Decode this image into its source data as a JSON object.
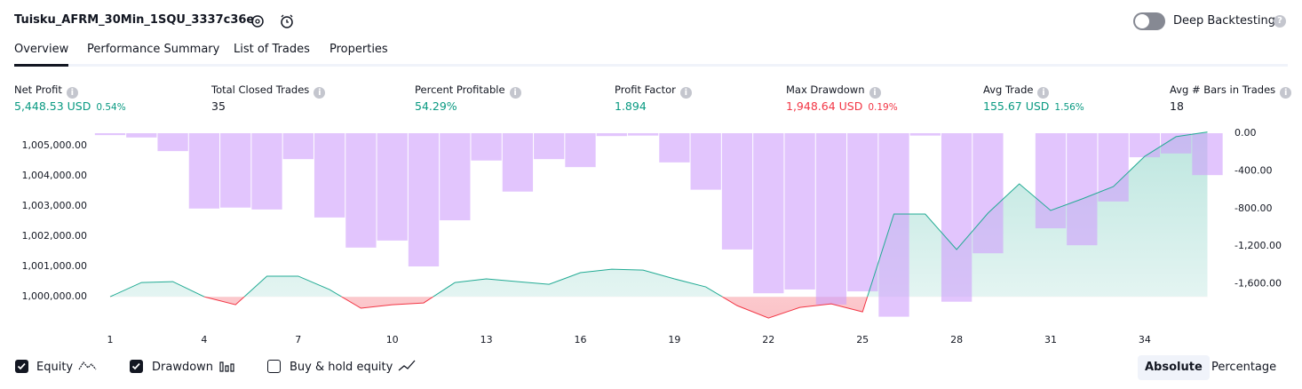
{
  "header": {
    "title": "Tuisku_AFRM_30Min_1SQU_3337c36e",
    "toggle": "Deep Backtesting",
    "toggle_on": false
  },
  "tabs": {
    "items": [
      "Overview",
      "Performance Summary",
      "List of Trades",
      "Properties"
    ],
    "active": 0
  },
  "metrics": [
    {
      "label": "Net Profit",
      "value": "5,448.53 USD",
      "pct": "0.54%",
      "color": "#089981"
    },
    {
      "label": "Total Closed Trades",
      "value": "35",
      "color": "#131722"
    },
    {
      "label": "Percent Profitable",
      "value": "54.29%",
      "color": "#089981"
    },
    {
      "label": "Profit Factor",
      "value": "1.894",
      "color": "#089981"
    },
    {
      "label": "Max Drawdown",
      "value": "1,948.64 USD",
      "pct": "0.19%",
      "color": "#f23645"
    },
    {
      "label": "Avg Trade",
      "value": "155.67 USD",
      "pct": "1.56%",
      "color": "#089981"
    },
    {
      "label": "Avg # Bars in Trades",
      "value": "18",
      "color": "#131722"
    }
  ],
  "chart_data": {
    "type": "equity-drawdown",
    "x": [
      1,
      2,
      3,
      4,
      5,
      6,
      7,
      8,
      9,
      10,
      11,
      12,
      13,
      14,
      15,
      16,
      17,
      18,
      19,
      20,
      21,
      22,
      23,
      24,
      25,
      26,
      27,
      28,
      29,
      30,
      31,
      32,
      33,
      34,
      35,
      36
    ],
    "xlim": [
      1,
      36
    ],
    "xticks": [
      1,
      4,
      7,
      10,
      13,
      16,
      19,
      22,
      25,
      28,
      31,
      34
    ],
    "series": [
      {
        "name": "Equity",
        "color": "#22ab94",
        "negative_color": "#f23645",
        "checked": true,
        "axis": "y",
        "values": [
          1000000,
          1000470,
          1000500,
          1000000,
          999735,
          1000680,
          1000680,
          1000235,
          999620,
          999735,
          999795,
          1000470,
          1000590,
          1000500,
          1000410,
          1000795,
          1000910,
          1000880,
          1000590,
          1000325,
          999705,
          999295,
          999645,
          999765,
          999500,
          1002735,
          1002735,
          1001560,
          1002765,
          1003735,
          1002855,
          1003235,
          1003645,
          1004645,
          1005295,
          1005449
        ]
      },
      {
        "name": "Drawdown",
        "color": "#ce9ffc",
        "checked": true,
        "axis": "y2",
        "values": [
          -20,
          -45,
          -190,
          -800,
          -790,
          -810,
          -275,
          -895,
          -1215,
          -1140,
          -1415,
          -925,
          -290,
          -620,
          -275,
          -360,
          -30,
          -25,
          -310,
          -600,
          -1235,
          -1700,
          -1660,
          -1820,
          -1680,
          -1949,
          -25,
          -1790,
          -1275,
          0,
          -1010,
          -1190,
          -725,
          -255,
          -215,
          -445
        ]
      }
    ],
    "extra_legend": {
      "name": "Buy & hold equity",
      "checked": false
    },
    "ylim": [
      999180,
      1005410
    ],
    "yticks": [
      {
        "value": 1005000,
        "label": "1,005,000.00"
      },
      {
        "value": 1004000,
        "label": "1,004,000.00"
      },
      {
        "value": 1003000,
        "label": "1,003,000.00"
      },
      {
        "value": 1002000,
        "label": "1,002,000.00"
      },
      {
        "value": 1001000,
        "label": "1,001,000.00"
      },
      {
        "value": 1000000,
        "label": "1,000,000.00"
      }
    ],
    "y2lim": [
      -2000,
      0
    ],
    "y2ticks": [
      {
        "value": 0,
        "label": "0.00"
      },
      {
        "value": -400,
        "label": "-400.00"
      },
      {
        "value": -800,
        "label": "-800.00"
      },
      {
        "value": -1200,
        "label": "-1,200.00"
      },
      {
        "value": -1600,
        "label": "-1,600.00"
      }
    ],
    "scale_modes": [
      "Absolute",
      "Percentage"
    ],
    "scale_active": 0
  }
}
